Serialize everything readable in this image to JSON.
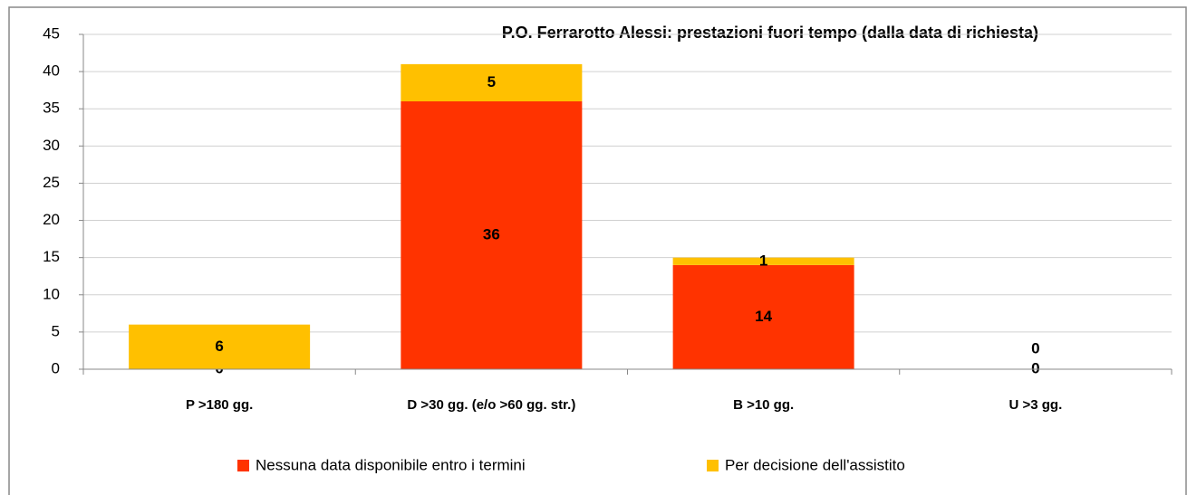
{
  "chart_data": {
    "type": "stacked_bar",
    "title": "P.O. Ferrarotto Alessi: prestazioni fuori tempo (dalla data di richiesta)",
    "categories": [
      "P >180 gg.",
      "D >30 gg. (e/o >60 gg. str.)",
      "B >10 gg.",
      "U >3 gg."
    ],
    "series": [
      {
        "name": "Nessuna data disponibile entro i termini",
        "color": "#ff3300",
        "values": [
          0,
          36,
          14,
          0
        ]
      },
      {
        "name": "Per decisione dell'assistito",
        "color": "#ffc000",
        "values": [
          6,
          5,
          1,
          0
        ]
      }
    ],
    "ylim": [
      0,
      45
    ],
    "yticks": [
      0,
      5,
      10,
      15,
      20,
      25,
      30,
      35,
      40,
      45
    ],
    "grid": true,
    "legend": "bottom"
  }
}
